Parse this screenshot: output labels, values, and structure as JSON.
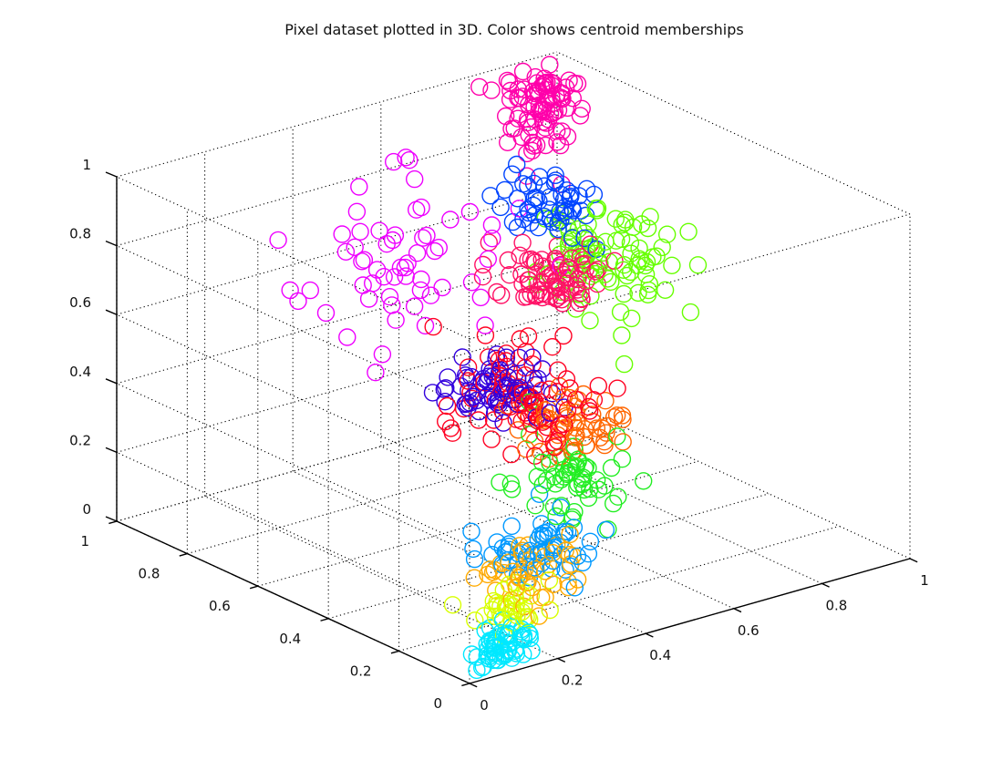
{
  "chart_data": {
    "type": "scatter",
    "title": "Pixel dataset plotted in 3D. Color shows centroid memberships",
    "xlabel": "",
    "ylabel": "",
    "zlabel": "",
    "dimensions": 3,
    "xlim": [
      0,
      1
    ],
    "ylim": [
      0,
      1
    ],
    "zlim": [
      0,
      1
    ],
    "grid": true,
    "legend": "none",
    "x_ticks": [
      "0",
      "0.2",
      "0.4",
      "0.6",
      "0.8",
      "1"
    ],
    "y_ticks": [
      "0",
      "0.2",
      "0.4",
      "0.6",
      "0.8",
      "1"
    ],
    "z_ticks": [
      "0",
      "0.2",
      "0.4",
      "0.6",
      "0.8",
      "1"
    ],
    "marker": "open-circle",
    "clusters": [
      {
        "color": "#00e8ff",
        "count": 60,
        "center": [
          0.1,
          0.03,
          0.06
        ],
        "spread": [
          0.03,
          0.015,
          0.03
        ]
      },
      {
        "color": "#d8ff00",
        "count": 35,
        "center": [
          0.15,
          0.06,
          0.14
        ],
        "spread": [
          0.04,
          0.02,
          0.03
        ]
      },
      {
        "color": "#ffaa00",
        "count": 45,
        "center": [
          0.22,
          0.09,
          0.2
        ],
        "spread": [
          0.05,
          0.03,
          0.04
        ]
      },
      {
        "color": "#0099ff",
        "count": 60,
        "center": [
          0.3,
          0.15,
          0.22
        ],
        "spread": [
          0.06,
          0.05,
          0.04
        ]
      },
      {
        "color": "#22ee22",
        "count": 55,
        "center": [
          0.48,
          0.3,
          0.28
        ],
        "spread": [
          0.07,
          0.05,
          0.05
        ]
      },
      {
        "color": "#ff6600",
        "count": 55,
        "center": [
          0.55,
          0.38,
          0.37
        ],
        "spread": [
          0.05,
          0.05,
          0.05
        ]
      },
      {
        "color": "#ff0022",
        "count": 85,
        "center": [
          0.45,
          0.4,
          0.48
        ],
        "spread": [
          0.07,
          0.07,
          0.06
        ]
      },
      {
        "color": "#3300dd",
        "count": 70,
        "center": [
          0.42,
          0.44,
          0.48
        ],
        "spread": [
          0.05,
          0.06,
          0.04
        ]
      },
      {
        "color": "#ff1166",
        "count": 80,
        "center": [
          0.62,
          0.55,
          0.7
        ],
        "spread": [
          0.05,
          0.05,
          0.04
        ]
      },
      {
        "color": "#0044ff",
        "count": 55,
        "center": [
          0.68,
          0.62,
          0.85
        ],
        "spread": [
          0.04,
          0.05,
          0.05
        ]
      },
      {
        "color": "#66ff00",
        "count": 95,
        "center": [
          0.8,
          0.62,
          0.65
        ],
        "spread": [
          0.06,
          0.06,
          0.08
        ]
      },
      {
        "color": "#ee00ff",
        "count": 60,
        "center": [
          0.42,
          0.72,
          0.75
        ],
        "spread": [
          0.1,
          0.07,
          0.12
        ]
      },
      {
        "color": "#ff00aa",
        "count": 90,
        "center": [
          0.8,
          0.8,
          1.02
        ],
        "spread": [
          0.04,
          0.04,
          0.08
        ]
      }
    ]
  }
}
